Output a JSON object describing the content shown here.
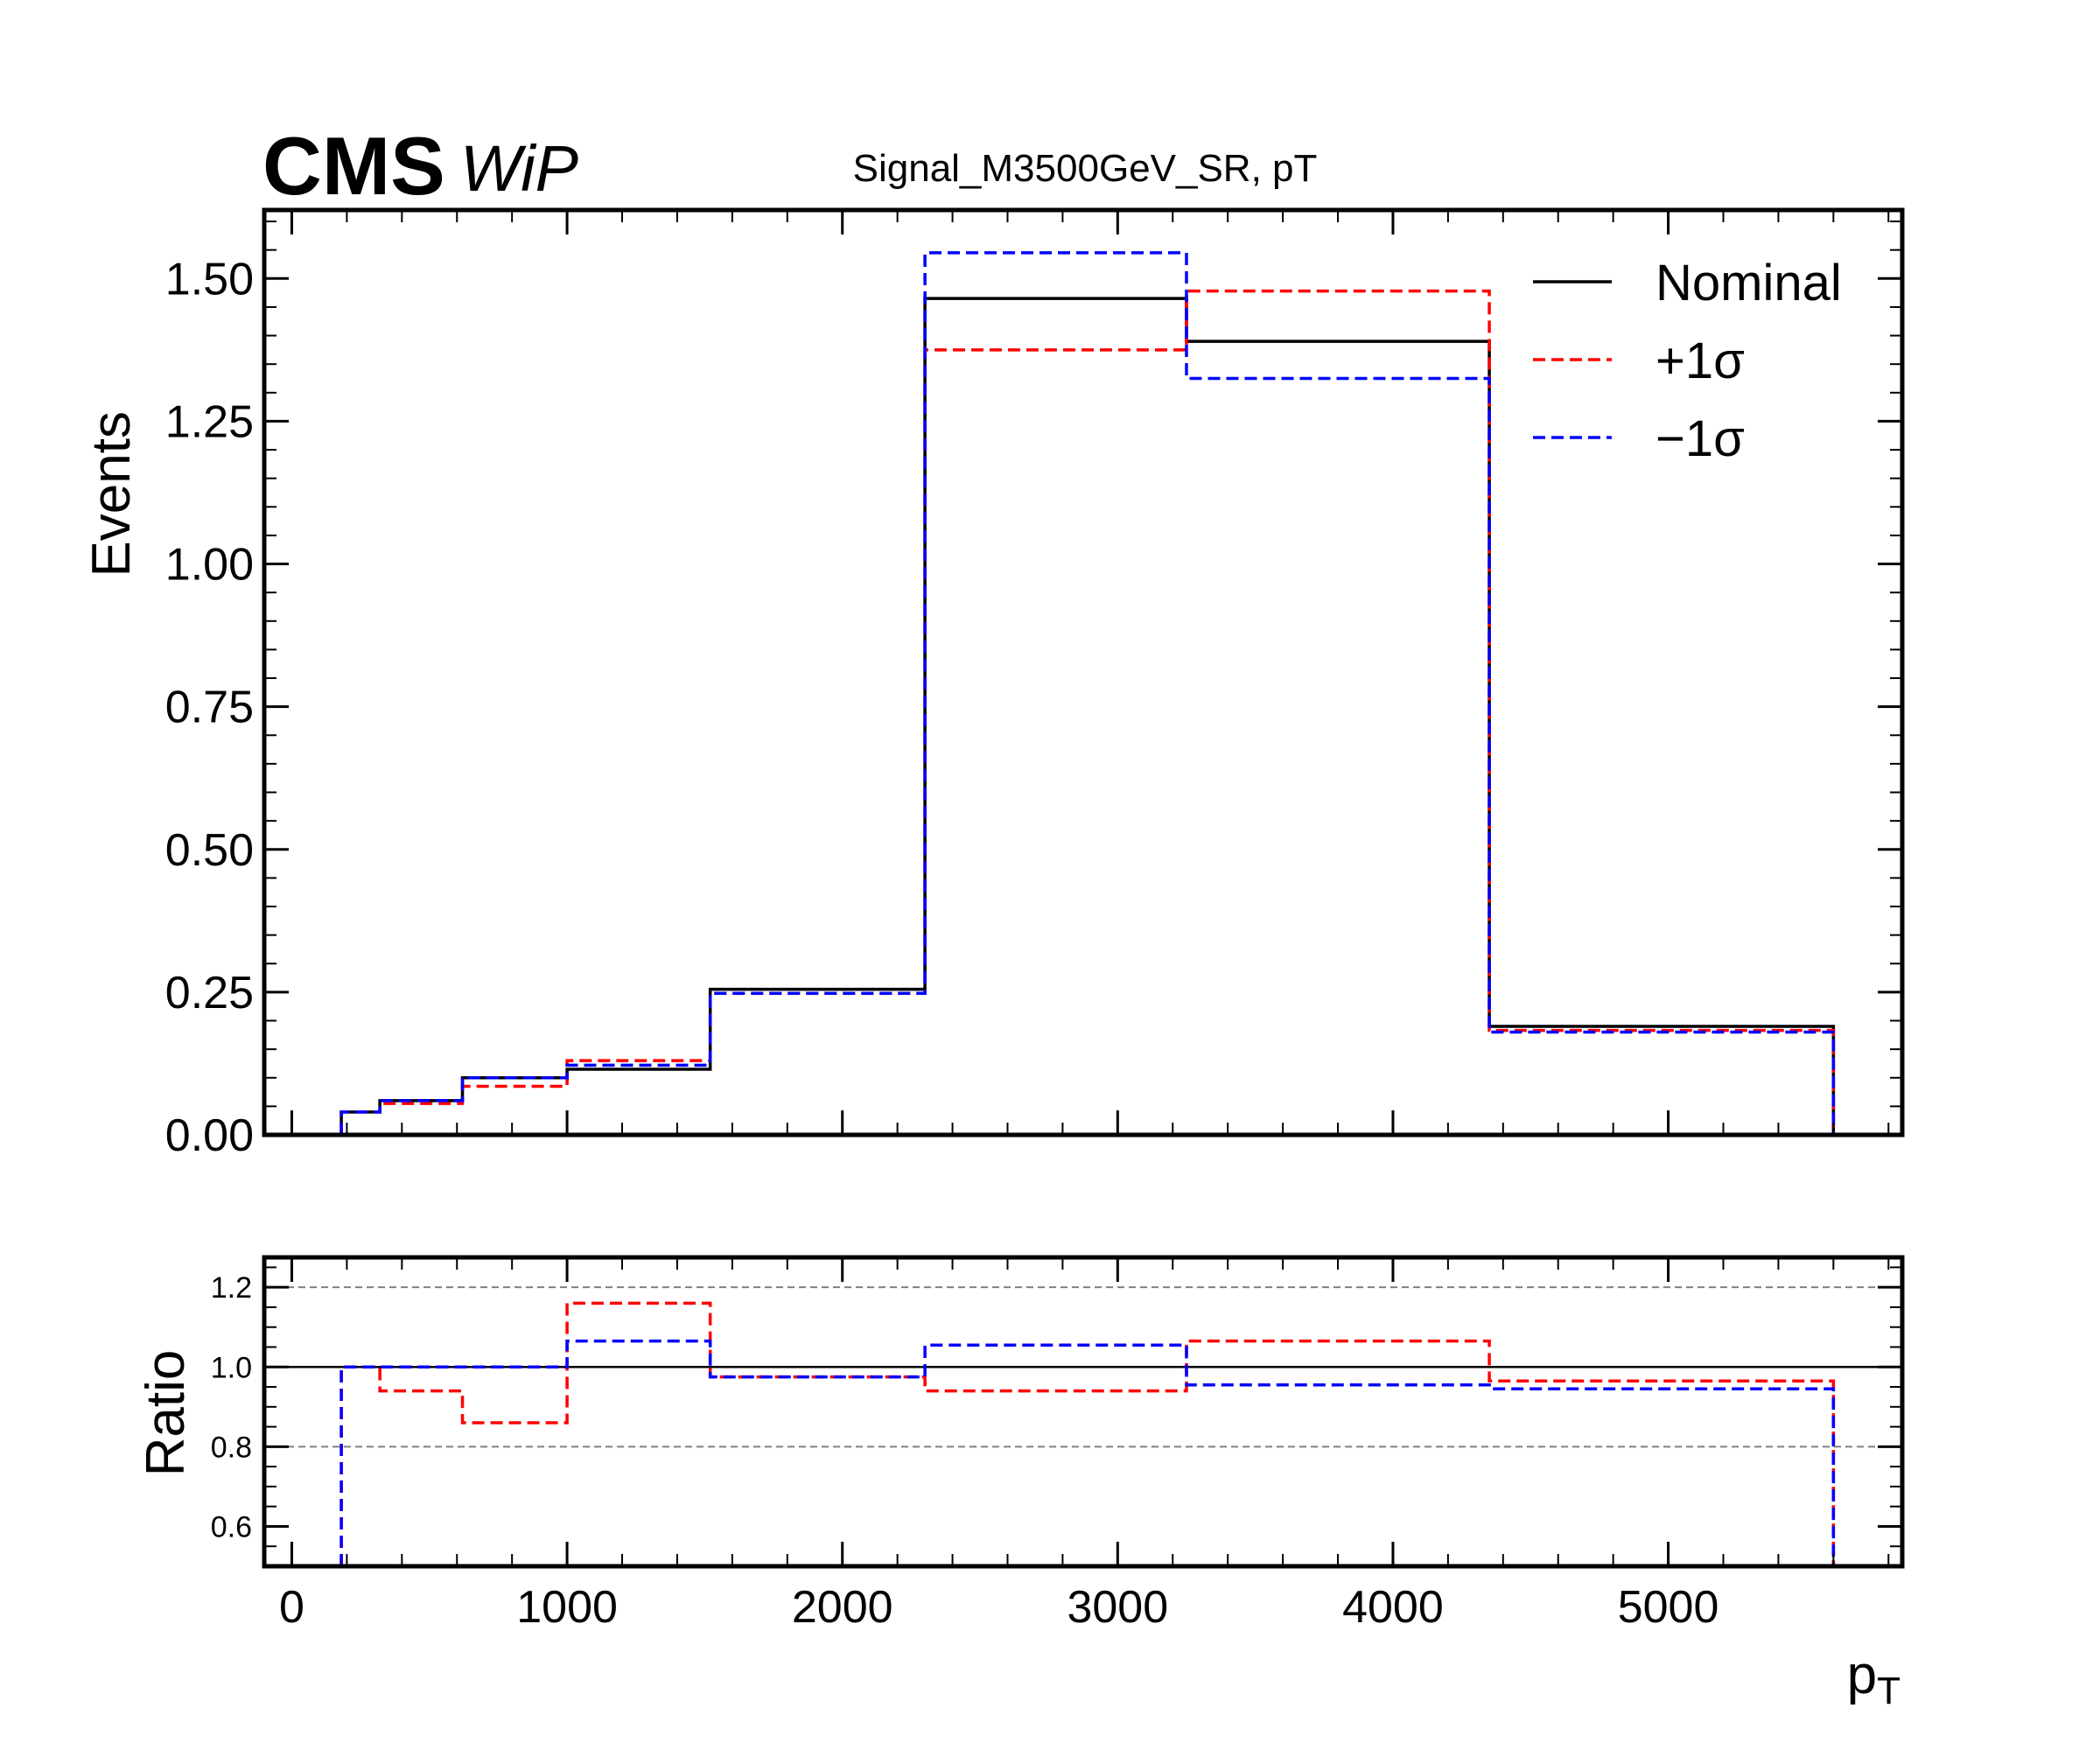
{
  "header": {
    "experiment": "CMS",
    "status": "WiP",
    "title": "Signal_M3500GeV_SR, pT"
  },
  "chart_data": [
    {
      "type": "line",
      "drawstyle": "step",
      "panel": "main",
      "ylabel": "Events",
      "xlabel": "",
      "xlim": [
        -100,
        5850
      ],
      "ylim": [
        0,
        1.62
      ],
      "yticks": [
        0.0,
        0.25,
        0.5,
        0.75,
        1.0,
        1.25,
        1.5
      ],
      "ytick_labels": [
        "0.00",
        "0.25",
        "0.50",
        "0.75",
        "1.00",
        "1.25",
        "1.50"
      ],
      "bin_edges": [
        180,
        320,
        620,
        1000,
        1520,
        2300,
        3250,
        4350,
        5600
      ],
      "series": [
        {
          "name": "Nominal",
          "color": "#000000",
          "linestyle": "solid",
          "values": [
            0.04,
            0.06,
            0.1,
            0.115,
            0.255,
            1.465,
            1.39,
            0.19
          ]
        },
        {
          "name": "+1σ",
          "color": "#ff0000",
          "linestyle": "dashed",
          "values": [
            0.04,
            0.055,
            0.085,
            0.13,
            0.248,
            1.375,
            1.478,
            0.183
          ]
        },
        {
          "name": "−1σ",
          "color": "#0000ff",
          "linestyle": "dashed",
          "values": [
            0.04,
            0.06,
            0.1,
            0.122,
            0.248,
            1.545,
            1.325,
            0.18
          ]
        }
      ],
      "legend": {
        "position": "top-right",
        "entries": [
          "Nominal",
          "+1σ",
          "−1σ"
        ]
      },
      "grid": false
    },
    {
      "type": "line",
      "drawstyle": "step",
      "panel": "ratio",
      "ylabel": "Ratio",
      "xlabel": "p_T",
      "xlim": [
        -100,
        5850
      ],
      "ylim": [
        0.5,
        1.275
      ],
      "yticks": [
        0.6,
        0.8,
        1.0,
        1.2
      ],
      "ytick_labels": [
        "0.6",
        "0.8",
        "1.0",
        "1.2"
      ],
      "xticks": [
        0,
        1000,
        2000,
        3000,
        4000,
        5000
      ],
      "xtick_labels": [
        "0",
        "1000",
        "2000",
        "3000",
        "4000",
        "5000"
      ],
      "reference_lines": [
        {
          "y": 1.0,
          "color": "#000000",
          "linestyle": "solid"
        },
        {
          "y": 1.2,
          "color": "#808080",
          "linestyle": "dashed"
        },
        {
          "y": 0.8,
          "color": "#808080",
          "linestyle": "dashed"
        }
      ],
      "bin_edges": [
        180,
        320,
        620,
        1000,
        1520,
        2300,
        3250,
        4350,
        5600
      ],
      "series": [
        {
          "name": "+1σ",
          "color": "#ff0000",
          "linestyle": "dashed",
          "values": [
            1.0,
            0.94,
            0.86,
            1.16,
            0.975,
            0.94,
            1.065,
            0.965
          ]
        },
        {
          "name": "−1σ",
          "color": "#0000ff",
          "linestyle": "dashed",
          "values": [
            1.0,
            1.0,
            1.0,
            1.065,
            0.975,
            1.055,
            0.955,
            0.945
          ]
        }
      ]
    }
  ]
}
